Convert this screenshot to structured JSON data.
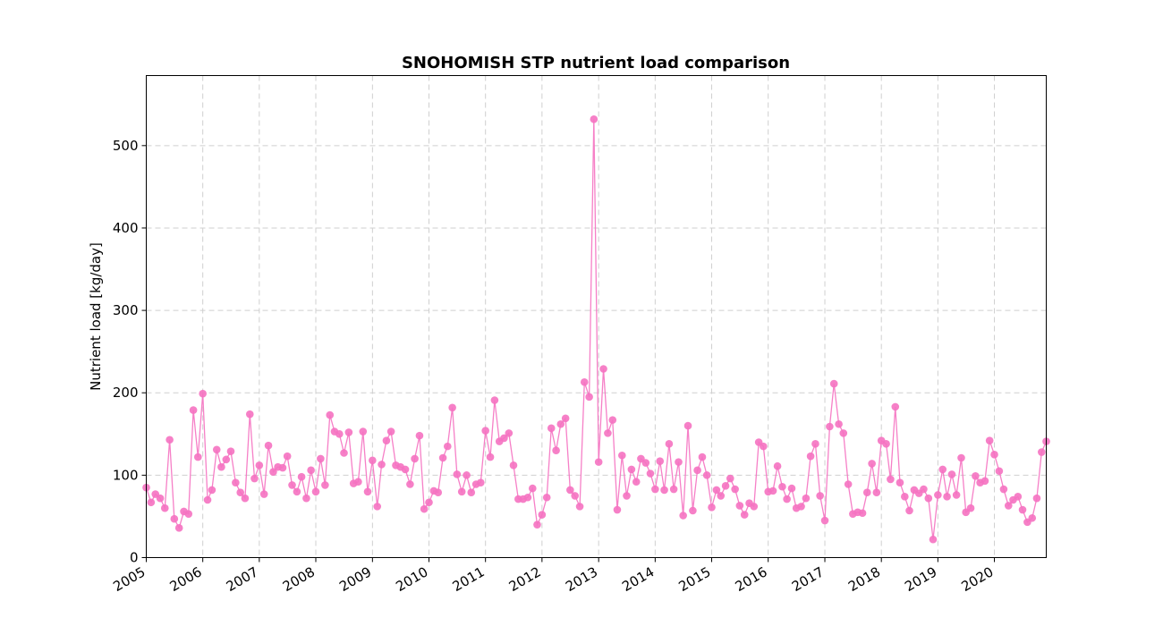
{
  "chart_data": {
    "type": "line",
    "title": "SNOHOMISH STP nutrient load comparison",
    "xlabel": "",
    "ylabel": "Nutrient load [kg/day]",
    "x_start": "2005-01",
    "x_end": "2020-12",
    "xlim": [
      "2005-01",
      "2020-12"
    ],
    "ylim": [
      0,
      585
    ],
    "x_tick_labels": [
      "2005",
      "2006",
      "2007",
      "2008",
      "2009",
      "2010",
      "2011",
      "2012",
      "2013",
      "2014",
      "2015",
      "2016",
      "2017",
      "2018",
      "2019",
      "2020"
    ],
    "y_ticks": [
      0,
      100,
      200,
      300,
      400,
      500
    ],
    "grid": true,
    "marker": "circle",
    "colors": {
      "series": "#f572c1"
    },
    "series": [
      {
        "name": "",
        "values": [
          85,
          67,
          77,
          72,
          60,
          143,
          47,
          36,
          56,
          53,
          179,
          122,
          199,
          70,
          82,
          131,
          110,
          119,
          129,
          91,
          79,
          72,
          174,
          96,
          112,
          77,
          136,
          104,
          110,
          109,
          123,
          88,
          80,
          98,
          72,
          106,
          80,
          120,
          88,
          173,
          153,
          150,
          127,
          152,
          90,
          92,
          153,
          80,
          118,
          62,
          113,
          142,
          153,
          112,
          110,
          107,
          89,
          120,
          148,
          59,
          67,
          81,
          79,
          121,
          135,
          182,
          101,
          80,
          100,
          79,
          89,
          91,
          154,
          122,
          191,
          141,
          145,
          151,
          112,
          71,
          71,
          73,
          84,
          40,
          52,
          73,
          157,
          130,
          162,
          169,
          82,
          75,
          62,
          213,
          195,
          532,
          116,
          229,
          151,
          167,
          58,
          124,
          75,
          107,
          92,
          120,
          115,
          102,
          83,
          117,
          82,
          138,
          83,
          116,
          51,
          160,
          57,
          106,
          122,
          100,
          61,
          82,
          75,
          87,
          96,
          83,
          63,
          52,
          66,
          62,
          140,
          135,
          80,
          81,
          111,
          86,
          71,
          84,
          60,
          62,
          72,
          123,
          138,
          75,
          45,
          159,
          211,
          162,
          151,
          89,
          53,
          55,
          54,
          79,
          114,
          79,
          142,
          138,
          95,
          183,
          91,
          74,
          57,
          82,
          78,
          83,
          72,
          22,
          76,
          107,
          74,
          101,
          76,
          121,
          55,
          60,
          99,
          91,
          93,
          142,
          125,
          105,
          83,
          63,
          70,
          74,
          58,
          43,
          48,
          72,
          128,
          141
        ]
      }
    ]
  }
}
